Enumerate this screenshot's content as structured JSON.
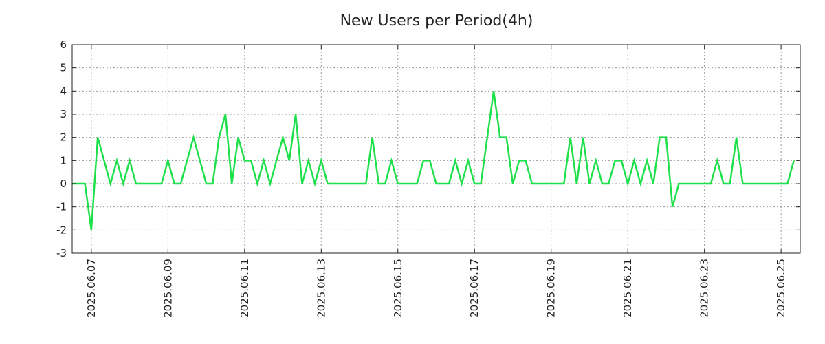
{
  "chart_data": {
    "type": "line",
    "title": "New Users per Period(4h)",
    "xlabel": "",
    "ylabel": "",
    "ylim": [
      -3,
      6
    ],
    "y_ticks": [
      "-3",
      "-2",
      "-1",
      "0",
      "1",
      "2",
      "3",
      "4",
      "5",
      "6"
    ],
    "x_tick_labels": [
      "2025.06.07",
      "2025.06.09",
      "2025.06.11",
      "2025.06.13",
      "2025.06.15",
      "2025.06.17",
      "2025.06.19",
      "2025.06.21",
      "2025.06.23",
      "2025.06.25"
    ],
    "x_tick_index": [
      3,
      15,
      27,
      39,
      51,
      63,
      75,
      87,
      99,
      111
    ],
    "x_num_periods": 114,
    "grid": true,
    "series": [
      {
        "name": "New Users",
        "color": "#1ee04a",
        "values": [
          0,
          0,
          0,
          -2,
          2,
          1,
          0,
          1,
          0,
          1,
          0,
          0,
          0,
          0,
          0,
          1,
          0,
          0,
          1,
          2,
          1,
          0,
          0,
          2,
          3,
          0,
          2,
          1,
          1,
          0,
          1,
          0,
          1,
          2,
          1,
          3,
          0,
          1,
          0,
          1,
          0,
          0,
          0,
          0,
          0,
          0,
          0,
          2,
          0,
          0,
          1,
          0,
          0,
          0,
          0,
          1,
          1,
          0,
          0,
          0,
          1,
          0,
          1,
          0,
          0,
          2,
          4,
          2,
          2,
          0,
          1,
          1,
          0,
          0,
          0,
          0,
          0,
          0,
          2,
          0,
          2,
          0,
          1,
          0,
          0,
          1,
          1,
          0,
          1,
          0,
          1,
          0,
          2,
          2,
          -1,
          0,
          0,
          0,
          0,
          0,
          0,
          1,
          0,
          0,
          2,
          0,
          0,
          0,
          0,
          0,
          0,
          0,
          0,
          1
        ]
      }
    ]
  }
}
